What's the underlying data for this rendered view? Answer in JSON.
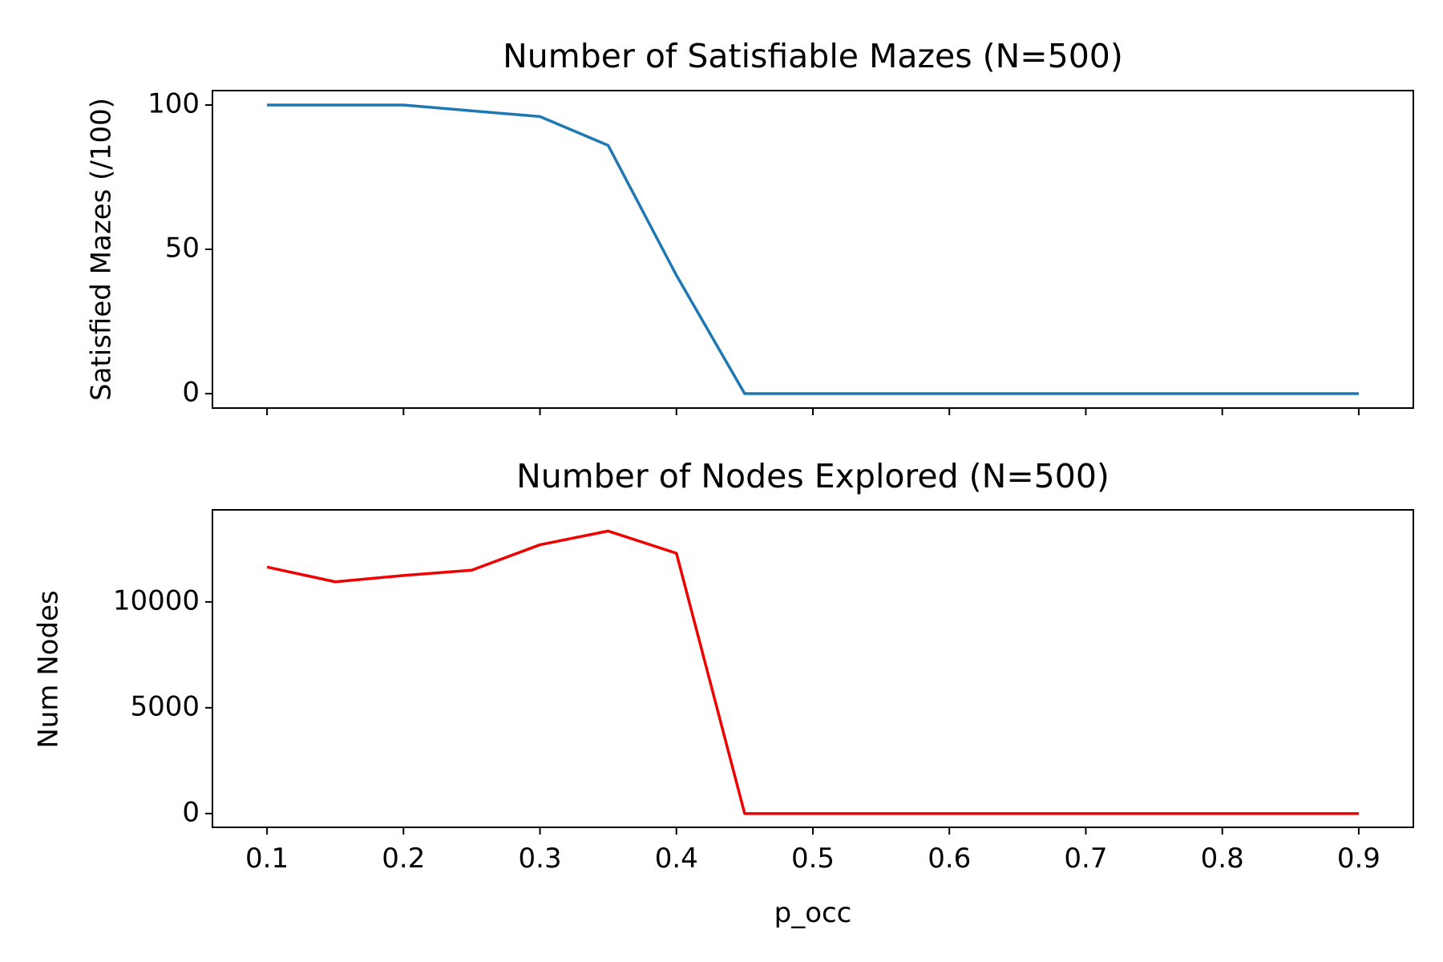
{
  "chart_data": [
    {
      "type": "line",
      "title": "Number of Satisfiable Mazes (N=500)",
      "xlabel": "",
      "ylabel": "Satisfied Mazes (/100)",
      "x": [
        0.1,
        0.15,
        0.2,
        0.25,
        0.3,
        0.35,
        0.4,
        0.45,
        0.5,
        0.55,
        0.6,
        0.65,
        0.7,
        0.75,
        0.8,
        0.85,
        0.9
      ],
      "xlim": [
        0.06,
        0.94
      ],
      "ylim": [
        -5,
        105
      ],
      "yticks": [
        0,
        50,
        100
      ],
      "ytick_labels": [
        "0",
        "50",
        "100"
      ],
      "xticks": [
        0.1,
        0.2,
        0.3,
        0.4,
        0.5,
        0.6,
        0.7,
        0.8,
        0.9
      ],
      "xtick_labels_shown": false,
      "grid": false,
      "series": [
        {
          "color": "#1f77b4",
          "values": [
            100,
            100,
            100,
            98,
            96,
            86,
            41,
            0,
            0,
            0,
            0,
            0,
            0,
            0,
            0,
            0,
            0
          ]
        }
      ]
    },
    {
      "type": "line",
      "title": "Number of Nodes Explored (N=500)",
      "xlabel": "p_occ",
      "ylabel": "Num Nodes",
      "x": [
        0.1,
        0.15,
        0.2,
        0.25,
        0.3,
        0.35,
        0.4,
        0.45,
        0.5,
        0.55,
        0.6,
        0.65,
        0.7,
        0.75,
        0.8,
        0.85,
        0.9
      ],
      "xlim": [
        0.06,
        0.94
      ],
      "ylim": [
        -650,
        14350
      ],
      "yticks": [
        0,
        5000,
        10000
      ],
      "ytick_labels": [
        "0",
        "5000",
        "10000"
      ],
      "xticks": [
        0.1,
        0.2,
        0.3,
        0.4,
        0.5,
        0.6,
        0.7,
        0.8,
        0.9
      ],
      "xtick_labels": [
        "0.1",
        "0.2",
        "0.3",
        "0.4",
        "0.5",
        "0.6",
        "0.7",
        "0.8",
        "0.9"
      ],
      "xtick_labels_shown": true,
      "grid": false,
      "series": [
        {
          "color": "#ee0000",
          "values": [
            11650,
            10950,
            11250,
            11500,
            12700,
            13350,
            12300,
            0,
            0,
            0,
            0,
            0,
            0,
            0,
            0,
            0,
            0
          ]
        }
      ]
    }
  ]
}
